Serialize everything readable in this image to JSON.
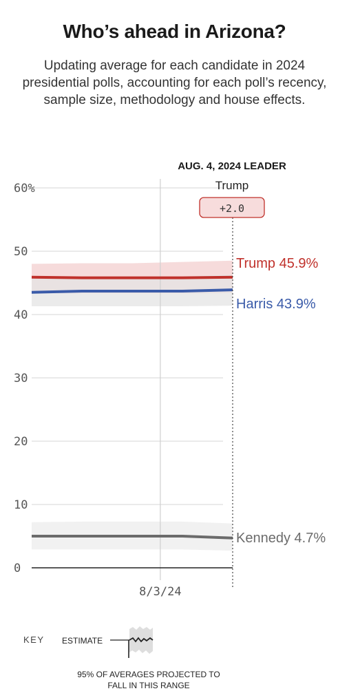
{
  "header": {
    "title": "Who’s ahead in Arizona?",
    "subtitle": "Updating average for each candidate in 2024 presidential polls, accounting for each poll’s recency, sample size, methodology and house effects."
  },
  "leader": {
    "heading": "AUG. 4, 2024 LEADER",
    "name": "Trump",
    "margin": "+2.0"
  },
  "colors": {
    "trump": "#c0312b",
    "harris": "#3a5ba9",
    "kennedy": "#6b6b6b",
    "leader_badge_bg": "#f7dcdc",
    "leader_badge_border": "#c0312b"
  },
  "chart_data": {
    "type": "line",
    "title": "Who’s ahead in Arizona?",
    "ylim": [
      0,
      60
    ],
    "yticks": [
      "0",
      "10",
      "20",
      "30",
      "40",
      "50",
      "60%"
    ],
    "x_tick_labels": [
      "8/3/24"
    ],
    "x_date_range": [
      "2024-07-31",
      "2024-08-04"
    ],
    "series": [
      {
        "name": "Trump",
        "end_label": "Trump 45.9%",
        "color": "#c0312b",
        "band_color": "#f3cfcf",
        "x": [
          "2024-07-31",
          "2024-08-01",
          "2024-08-02",
          "2024-08-03",
          "2024-08-04"
        ],
        "values": [
          45.9,
          45.8,
          45.8,
          45.8,
          45.9
        ],
        "lower": [
          43.4,
          43.3,
          43.3,
          43.3,
          43.4
        ],
        "upper": [
          48.0,
          48.1,
          48.1,
          48.3,
          48.5
        ]
      },
      {
        "name": "Harris",
        "end_label": "Harris 43.9%",
        "color": "#3a5ba9",
        "band_color": "#e4e4e4",
        "x": [
          "2024-07-31",
          "2024-08-01",
          "2024-08-02",
          "2024-08-03",
          "2024-08-04"
        ],
        "values": [
          43.5,
          43.7,
          43.7,
          43.7,
          43.9
        ],
        "lower": [
          41.3,
          41.3,
          41.3,
          41.3,
          41.4
        ],
        "upper": [
          45.8,
          45.9,
          45.9,
          46.0,
          46.3
        ]
      },
      {
        "name": "Kennedy",
        "end_label": "Kennedy 4.7%",
        "color": "#6b6b6b",
        "band_color": "#ececec",
        "x": [
          "2024-07-31",
          "2024-08-01",
          "2024-08-02",
          "2024-08-03",
          "2024-08-04"
        ],
        "values": [
          5.0,
          5.0,
          5.0,
          5.0,
          4.7
        ],
        "lower": [
          2.9,
          2.9,
          2.9,
          2.9,
          2.7
        ],
        "upper": [
          7.2,
          7.3,
          7.3,
          7.3,
          7.0
        ]
      }
    ]
  },
  "key": {
    "label": "KEY",
    "estimate": "ESTIMATE",
    "range": "95% OF AVERAGES PROJECTED TO FALL IN THIS RANGE"
  }
}
